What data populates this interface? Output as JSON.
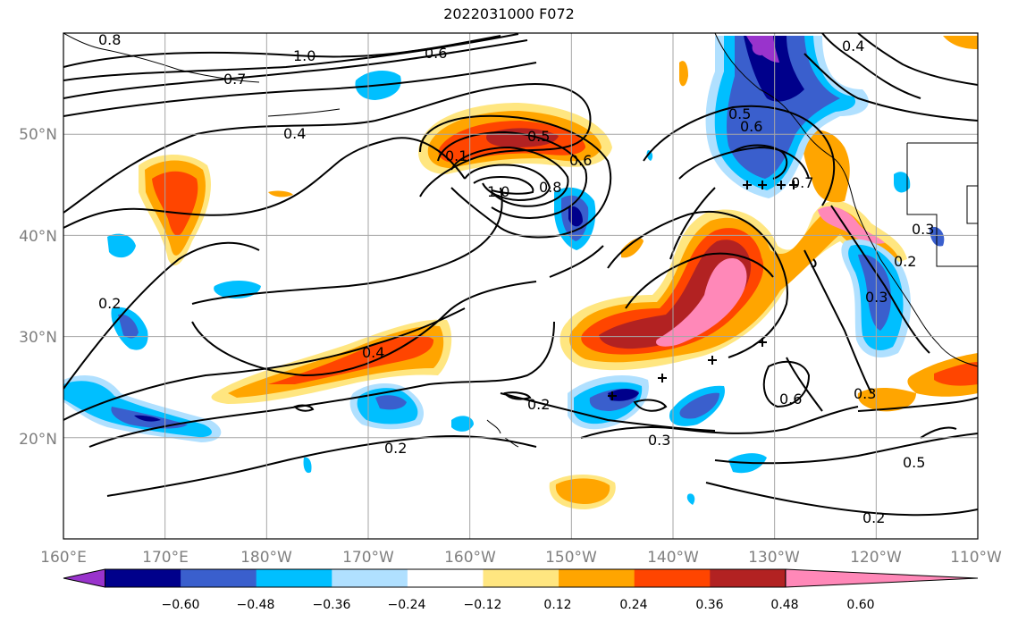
{
  "title": "2022031000 F072",
  "map": {
    "lon_ticks": [
      "160°E",
      "170°E",
      "180°W",
      "170°W",
      "160°W",
      "150°W",
      "140°W",
      "130°W",
      "120°W",
      "110°W"
    ],
    "lat_ticks": [
      "50°N",
      "40°N",
      "30°N",
      "20°N"
    ],
    "lon_range": [
      160,
      250
    ],
    "lat_range": [
      10,
      60
    ],
    "grid": true
  },
  "contour_labels": [
    "0.8",
    "1.0",
    "0.6",
    "0.7",
    "0.4",
    "0.1",
    "0.5",
    "0.6",
    "1.0",
    "0.8",
    "0.2",
    "0.4",
    "0.2",
    "0.5",
    "0.6",
    "0.7",
    "0.4",
    "0.3",
    "0.2",
    "0.3",
    "0.3",
    "0.6",
    "0.3",
    "0.5",
    "0.2",
    "0.2"
  ],
  "colorbar": {
    "ticks": [
      "−0.60",
      "−0.48",
      "−0.36",
      "−0.24",
      "−0.12",
      "0.12",
      "0.24",
      "0.36",
      "0.48",
      "0.60"
    ],
    "colors": [
      "#9933cc",
      "#00008b",
      "#3a5fcd",
      "#00bfff",
      "#b0e0ff",
      "#ffffff",
      "#ffe680",
      "#ffa500",
      "#ff4500",
      "#b22222",
      "#ff88b8"
    ]
  }
}
